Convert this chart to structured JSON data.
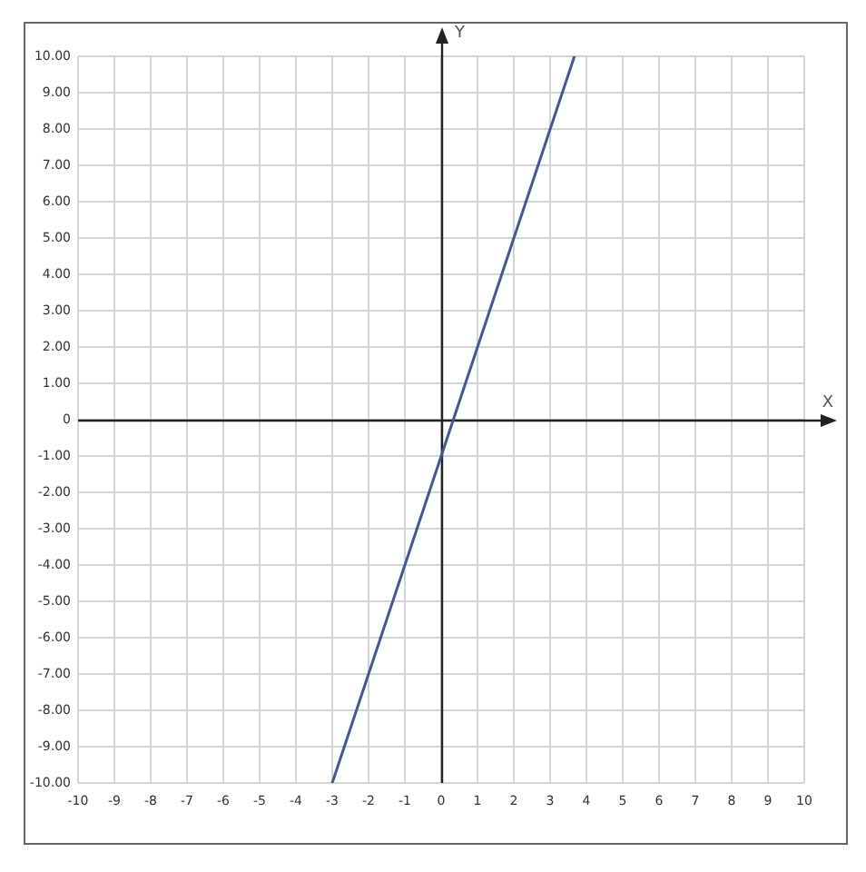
{
  "chart_data": {
    "type": "line",
    "xlabel": "X",
    "ylabel": "Y",
    "x": [
      -3,
      3.67
    ],
    "series": [
      {
        "color": "#3a5a9c",
        "values": [
          -10,
          10
        ]
      }
    ],
    "xlim": [
      -10,
      10
    ],
    "ylim": [
      -10,
      10
    ],
    "xticks": [
      -10,
      -9,
      -8,
      -7,
      -6,
      -5,
      -4,
      -3,
      -2,
      -1,
      0,
      1,
      2,
      3,
      4,
      5,
      6,
      7,
      8,
      9,
      10
    ],
    "yticks": [
      {
        "value": 10,
        "label": "10.00"
      },
      {
        "value": 9,
        "label": "9.00"
      },
      {
        "value": 8,
        "label": "8.00"
      },
      {
        "value": 7,
        "label": "7.00"
      },
      {
        "value": 6,
        "label": "6.00"
      },
      {
        "value": 5,
        "label": "5.00"
      },
      {
        "value": 4,
        "label": "4.00"
      },
      {
        "value": 3,
        "label": "3.00"
      },
      {
        "value": 2,
        "label": "2.00"
      },
      {
        "value": 1,
        "label": "1.00"
      },
      0,
      {
        "value": -1,
        "label": "-1.00"
      },
      {
        "value": -2,
        "label": "-2.00"
      },
      {
        "value": -3,
        "label": "-3.00"
      },
      {
        "value": -4,
        "label": "-4.00"
      },
      {
        "value": -5,
        "label": "-5.00"
      },
      {
        "value": -6,
        "label": "-6.00"
      },
      {
        "value": -7,
        "label": "-7.00"
      },
      {
        "value": -8,
        "label": "-8.00"
      },
      {
        "value": -9,
        "label": "-9.00"
      },
      {
        "value": -10,
        "label": "-10.00"
      }
    ],
    "grid": true
  }
}
